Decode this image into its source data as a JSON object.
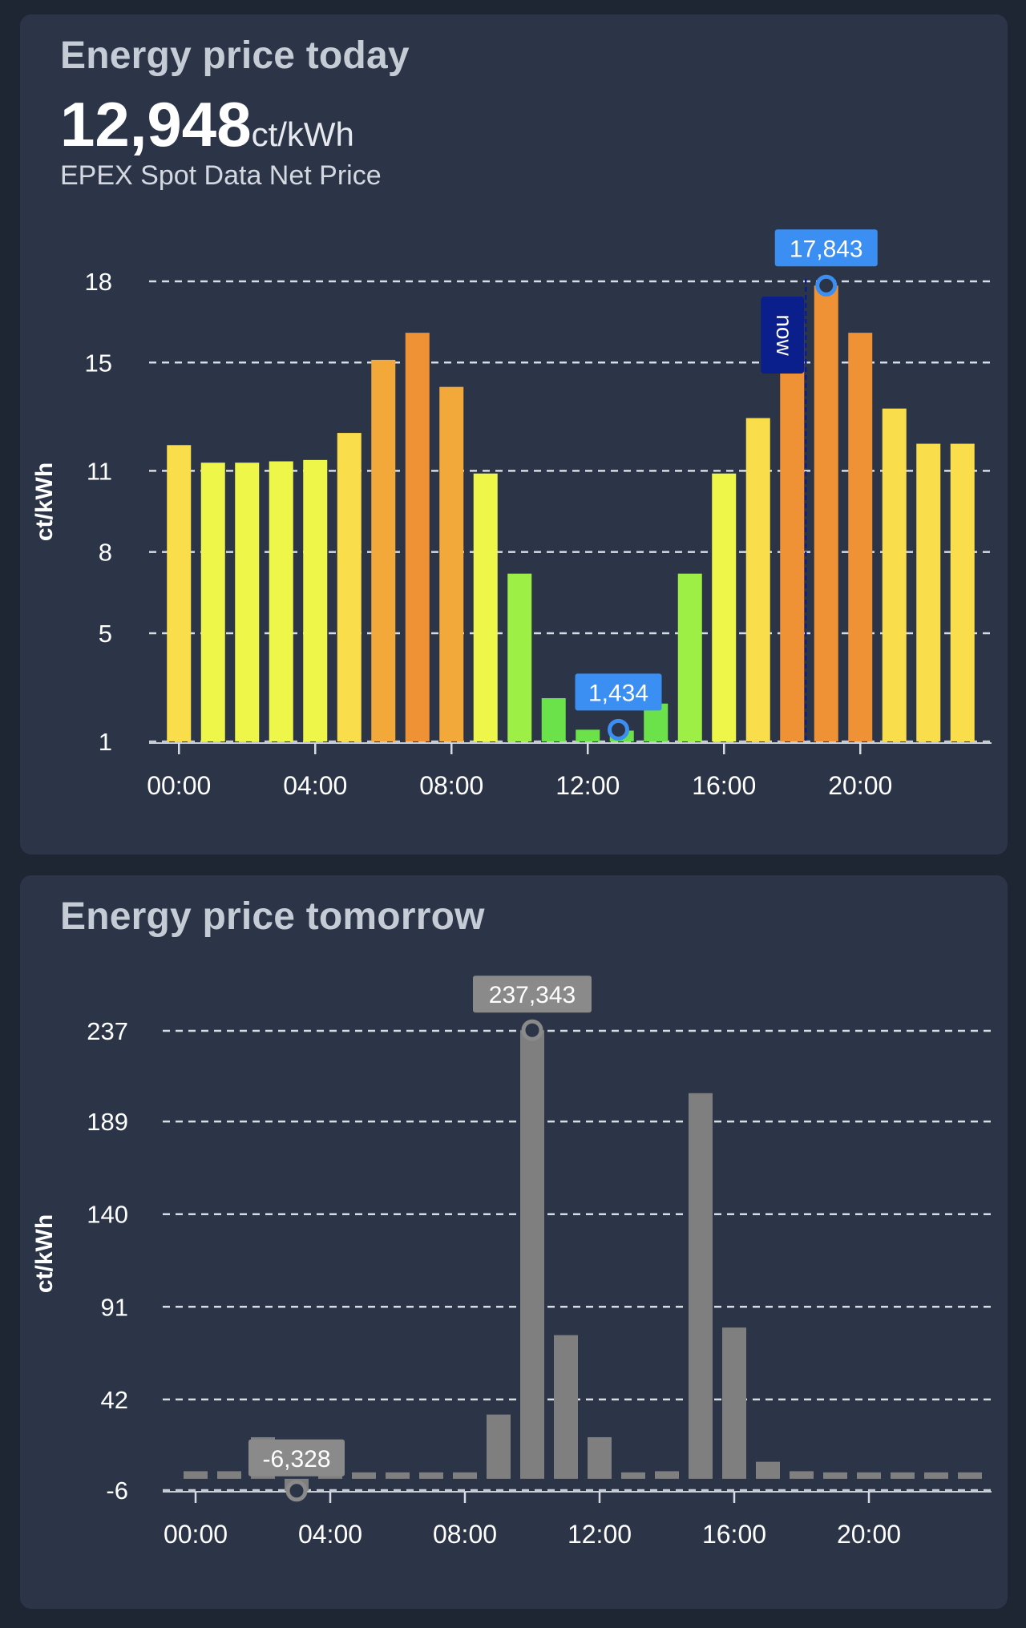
{
  "today": {
    "title": "Energy price today",
    "current_value": "12,948",
    "current_unit": "ct/kWh",
    "subtitle": "EPEX Spot Data Net Price",
    "now_label": "now",
    "max_label": "17,843",
    "min_label": "1,434",
    "colors": {
      "green": "#6be14a",
      "lightgreen": "#9eef45",
      "yellowgreen": "#eef64a",
      "yellow": "#f9dd4a",
      "orange": "#f3a83a",
      "darkorange": "#ef9236",
      "marker": "#3b8ef2",
      "now": "#0b1f8c"
    }
  },
  "tomorrow": {
    "title": "Energy price tomorrow",
    "max_label": "237,343",
    "min_label": "-6,328",
    "colors": {
      "bar": "#7f7f7f",
      "label": "#8a8a8a"
    }
  },
  "chart_data": [
    {
      "type": "bar",
      "title": "Energy price today",
      "ylabel": "ct/kWh",
      "yticks": [
        1,
        5,
        8,
        11,
        15,
        18
      ],
      "ylim": [
        1,
        18
      ],
      "xticks": [
        "00:00",
        "04:00",
        "08:00",
        "12:00",
        "16:00",
        "20:00"
      ],
      "x": [
        0,
        1,
        2,
        3,
        4,
        5,
        6,
        7,
        8,
        9,
        10,
        11,
        12,
        13,
        14,
        15,
        16,
        17,
        18,
        19,
        20,
        21,
        22,
        23
      ],
      "values": [
        11.95,
        11.3,
        11.3,
        11.35,
        11.4,
        12.4,
        15.1,
        16.1,
        14.1,
        10.9,
        7.2,
        2.6,
        1.434,
        1.4,
        2.4,
        7.2,
        10.9,
        12.948,
        16.5,
        17.843,
        16.1,
        13.3,
        12.0,
        12.0
      ],
      "highlights": {
        "max": {
          "x": 19,
          "value": 17.843
        },
        "min": {
          "x": 12.9,
          "value": 1.434
        },
        "now_x": 18.4
      },
      "grid": true,
      "legend": "none"
    },
    {
      "type": "bar",
      "title": "Energy price tomorrow",
      "ylabel": "ct/kWh",
      "yticks": [
        -6,
        42,
        91,
        140,
        189,
        237
      ],
      "ylim": [
        -6,
        237
      ],
      "xticks": [
        "00:00",
        "04:00",
        "08:00",
        "12:00",
        "16:00",
        "20:00"
      ],
      "x": [
        0,
        1,
        2,
        3,
        4,
        5,
        6,
        7,
        8,
        9,
        10,
        11,
        12,
        13,
        14,
        15,
        16,
        17,
        18,
        19,
        20,
        21,
        22,
        23
      ],
      "values": [
        4,
        4,
        22,
        -6.328,
        0.5,
        0.5,
        0.5,
        0.5,
        1,
        34,
        237.343,
        76,
        22,
        0.5,
        4,
        204,
        80,
        9,
        4,
        0.5,
        0.5,
        0.5,
        0.5,
        0.5
      ],
      "highlights": {
        "max": {
          "x": 10,
          "value": 237.343
        },
        "min": {
          "x": 3,
          "value": -6.328
        }
      },
      "grid": true,
      "legend": "none"
    }
  ]
}
